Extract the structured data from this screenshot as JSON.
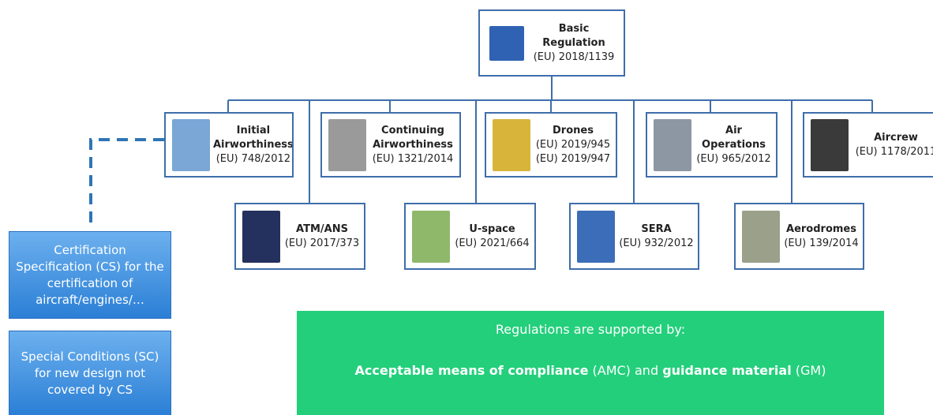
{
  "nodes": [
    {
      "title": "Basic Regulation",
      "codes": [
        "(EU) 2018/1139"
      ]
    },
    {
      "title": "Initial Airworthiness",
      "codes": [
        "(EU) 748/2012"
      ]
    },
    {
      "title": "Continuing Airworthiness",
      "codes": [
        "(EU) 1321/2014"
      ]
    },
    {
      "title": "Drones",
      "codes": [
        "(EU) 2019/945",
        "(EU) 2019/947"
      ]
    },
    {
      "title": "Air Operations",
      "codes": [
        "(EU) 965/2012"
      ]
    },
    {
      "title": "Aircrew",
      "codes": [
        "(EU) 1178/2011"
      ]
    },
    {
      "title": "ATM/ANS",
      "codes": [
        "(EU) 2017/373"
      ]
    },
    {
      "title": "U-space",
      "codes": [
        "(EU) 2021/664"
      ]
    },
    {
      "title": "SERA",
      "codes": [
        "(EU) 932/2012"
      ]
    },
    {
      "title": "Aerodromes",
      "codes": [
        "(EU) 139/2014"
      ]
    }
  ],
  "side_boxes": [
    "Certification Specification (CS) for the certification of aircraft/engines/…",
    "Special Conditions (SC) for new design not covered by CS"
  ],
  "support": {
    "heading": "Regulations are supported by:",
    "parts": [
      "Acceptable means of compliance",
      " (AMC) and ",
      "guidance material",
      " (GM)"
    ]
  }
}
